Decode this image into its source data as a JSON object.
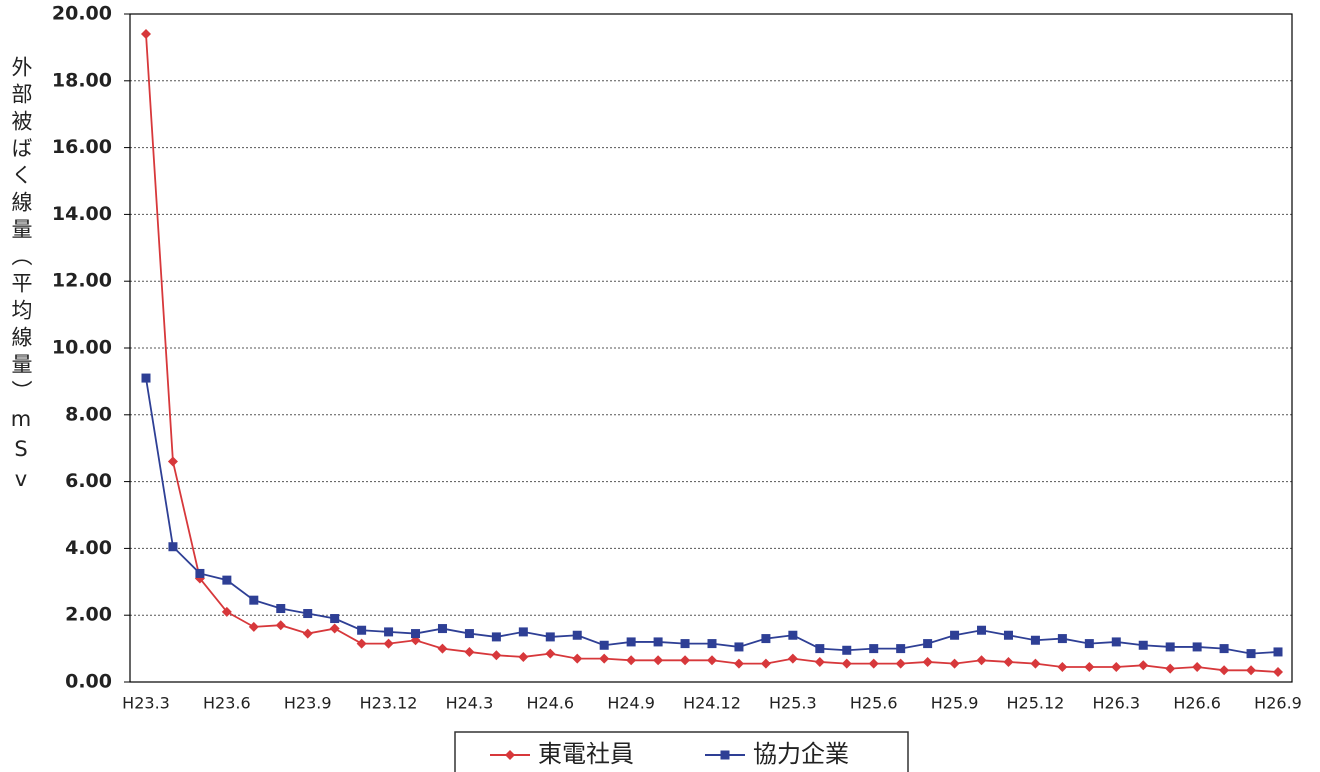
{
  "chart_data": {
    "type": "line",
    "y_label": "外部被ばく線量（平均線量）mSv",
    "categories": [
      "H23.3",
      null,
      null,
      "H23.6",
      null,
      null,
      "H23.9",
      null,
      null,
      "H23.12",
      null,
      null,
      "H24.3",
      null,
      null,
      "H24.6",
      null,
      null,
      "H24.9",
      null,
      null,
      "H24.12",
      null,
      null,
      "H25.3",
      null,
      null,
      "H25.6",
      null,
      null,
      "H25.9",
      null,
      null,
      "H25.12",
      null,
      null,
      "H26.3",
      null,
      null,
      "H26.6",
      null,
      null,
      "H26.9"
    ],
    "series": [
      {
        "name": "東電社員",
        "color": "#d7383b",
        "marker": "diamond",
        "values": [
          19.4,
          6.6,
          3.1,
          2.1,
          1.65,
          1.7,
          1.45,
          1.6,
          1.15,
          1.15,
          1.25,
          1.0,
          0.9,
          0.8,
          0.75,
          0.85,
          0.7,
          0.7,
          0.65,
          0.65,
          0.65,
          0.65,
          0.55,
          0.55,
          0.7,
          0.6,
          0.55,
          0.55,
          0.55,
          0.6,
          0.55,
          0.65,
          0.6,
          0.55,
          0.45,
          0.45,
          0.45,
          0.5,
          0.4,
          0.45,
          0.35,
          0.35,
          0.3
        ]
      },
      {
        "name": "協力企業",
        "color": "#2e3f95",
        "marker": "square",
        "values": [
          9.1,
          4.05,
          3.25,
          3.05,
          2.45,
          2.2,
          2.05,
          1.9,
          1.55,
          1.5,
          1.45,
          1.6,
          1.45,
          1.35,
          1.5,
          1.35,
          1.4,
          1.1,
          1.2,
          1.2,
          1.15,
          1.15,
          1.05,
          1.3,
          1.4,
          1.0,
          0.95,
          1.0,
          1.0,
          1.15,
          1.4,
          1.55,
          1.4,
          1.25,
          1.3,
          1.15,
          1.2,
          1.1,
          1.05,
          1.05,
          1.0,
          0.85,
          0.9
        ]
      }
    ],
    "ylim": [
      0,
      20
    ],
    "yticks": [
      {
        "value": 0,
        "label": "0.00"
      },
      {
        "value": 2,
        "label": "2.00"
      },
      {
        "value": 4,
        "label": "4.00"
      },
      {
        "value": 6,
        "label": "6.00"
      },
      {
        "value": 8,
        "label": "8.00"
      },
      {
        "value": 10,
        "label": "10.00"
      },
      {
        "value": 12,
        "label": "12.00"
      },
      {
        "value": 14,
        "label": "14.00"
      },
      {
        "value": 16,
        "label": "16.00"
      },
      {
        "value": 18,
        "label": "18.00"
      },
      {
        "value": 20,
        "label": "20.00"
      }
    ],
    "grid": true,
    "legend": "bottom"
  }
}
